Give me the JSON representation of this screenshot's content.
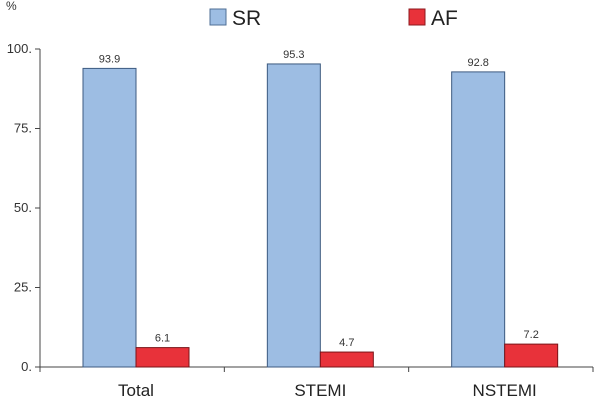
{
  "chart_data": {
    "type": "bar",
    "unit_label": "%",
    "categories": [
      "Total",
      "STEMI",
      "NSTEMI"
    ],
    "series": [
      {
        "name": "SR",
        "values": [
          93.9,
          95.3,
          92.8
        ],
        "color": "#9dbde3",
        "value_labels": [
          "93.9",
          "95.3",
          "92.8"
        ]
      },
      {
        "name": "AF",
        "values": [
          6.1,
          4.7,
          7.2
        ],
        "color": "#e8323a",
        "value_labels": [
          "6.1",
          "4.7",
          "7.2"
        ]
      }
    ],
    "ylim": [
      0,
      100
    ],
    "yticks": [
      0,
      25,
      50,
      75,
      100
    ],
    "ytick_labels": [
      "0.",
      "25.",
      "50.",
      "75.",
      "100."
    ],
    "grid": false,
    "legend_position": "top"
  }
}
